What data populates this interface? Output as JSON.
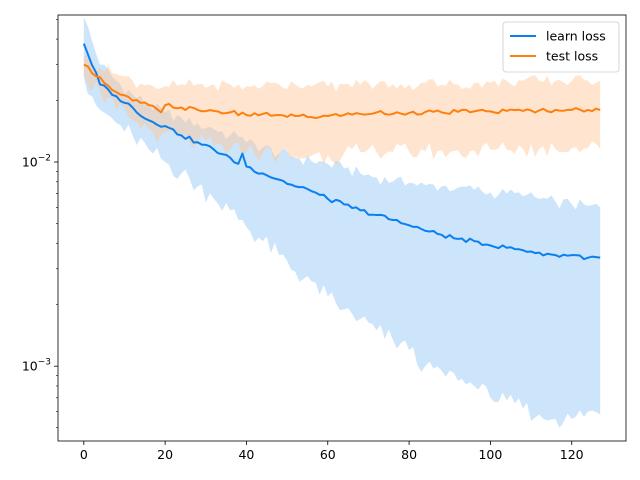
{
  "chart_data": {
    "type": "line",
    "title": "",
    "xlabel": "",
    "ylabel": "",
    "xlim": [
      -6.35,
      133.35
    ],
    "ylim": [
      0.00043,
      0.0525
    ],
    "yscale": "log",
    "grid": false,
    "legend_position": "top-right",
    "x_ticks": [
      0,
      20,
      40,
      60,
      80,
      100,
      120
    ],
    "x_tick_labels": [
      "0",
      "20",
      "40",
      "60",
      "80",
      "100",
      "120"
    ],
    "y_major_ticks": [
      0.001,
      0.01
    ],
    "y_tick_labels": [
      "10",
      "10"
    ],
    "y_tick_exponents": [
      "−3",
      "−2"
    ],
    "series": [
      {
        "name": "learn loss",
        "color": "#1f77b4",
        "line_color": "#0a7ff0",
        "band_color": "#8fc6f7",
        "band_opacity": 0.45,
        "x": [
          0,
          4,
          8,
          12,
          16,
          20,
          24,
          28,
          32,
          36,
          38,
          39,
          40,
          44,
          48,
          52,
          56,
          60,
          64,
          68,
          72,
          76,
          80,
          84,
          88,
          92,
          96,
          100,
          104,
          108,
          112,
          116,
          120,
          124,
          127
        ],
        "mean": [
          0.038,
          0.024,
          0.021,
          0.0185,
          0.016,
          0.015,
          0.0135,
          0.0125,
          0.0115,
          0.0105,
          0.0098,
          0.011,
          0.0095,
          0.0088,
          0.0082,
          0.0076,
          0.0072,
          0.0066,
          0.0062,
          0.0058,
          0.0055,
          0.0052,
          0.0049,
          0.0046,
          0.0044,
          0.0042,
          0.0041,
          0.0039,
          0.0038,
          0.0037,
          0.0036,
          0.0035,
          0.0035,
          0.0034,
          0.0034
        ],
        "upper": [
          0.051,
          0.03,
          0.025,
          0.0215,
          0.019,
          0.0175,
          0.0165,
          0.0155,
          0.0145,
          0.0135,
          0.0133,
          0.0133,
          0.0125,
          0.0118,
          0.011,
          0.0105,
          0.0101,
          0.0098,
          0.0093,
          0.0088,
          0.0084,
          0.008,
          0.0079,
          0.0077,
          0.0076,
          0.0075,
          0.0073,
          0.0071,
          0.007,
          0.0068,
          0.0066,
          0.0064,
          0.0062,
          0.0061,
          0.006
        ],
        "lower": [
          0.026,
          0.018,
          0.0155,
          0.0135,
          0.0115,
          0.01,
          0.0088,
          0.0076,
          0.0066,
          0.0058,
          0.0052,
          0.0052,
          0.0048,
          0.0041,
          0.0035,
          0.0029,
          0.0026,
          0.0022,
          0.0019,
          0.0017,
          0.0015,
          0.00135,
          0.0012,
          0.001,
          0.00095,
          0.00085,
          0.0008,
          0.0007,
          0.00068,
          0.00062,
          0.00058,
          0.00055,
          0.00055,
          0.0006,
          0.00058
        ]
      },
      {
        "name": "test loss",
        "color": "#ff7f0e",
        "line_color": "#ff7f0e",
        "band_color": "#ffc594",
        "band_opacity": 0.45,
        "x": [
          0,
          4,
          8,
          12,
          16,
          19,
          20,
          24,
          28,
          32,
          36,
          40,
          44,
          48,
          52,
          56,
          60,
          64,
          68,
          72,
          76,
          80,
          84,
          88,
          92,
          96,
          100,
          104,
          108,
          112,
          116,
          120,
          124,
          127
        ],
        "mean": [
          0.03,
          0.026,
          0.022,
          0.02,
          0.019,
          0.0175,
          0.019,
          0.0185,
          0.018,
          0.0178,
          0.0175,
          0.017,
          0.0172,
          0.017,
          0.0168,
          0.0166,
          0.0168,
          0.017,
          0.0172,
          0.0175,
          0.0172,
          0.0174,
          0.0176,
          0.0175,
          0.0176,
          0.0177,
          0.0177,
          0.0178,
          0.0178,
          0.0179,
          0.018,
          0.018,
          0.018,
          0.018
        ],
        "upper": [
          0.033,
          0.029,
          0.027,
          0.025,
          0.024,
          0.023,
          0.0235,
          0.024,
          0.024,
          0.024,
          0.024,
          0.0235,
          0.0235,
          0.024,
          0.024,
          0.0235,
          0.0235,
          0.024,
          0.024,
          0.024,
          0.024,
          0.024,
          0.0245,
          0.024,
          0.024,
          0.0245,
          0.0245,
          0.025,
          0.025,
          0.025,
          0.025,
          0.025,
          0.025,
          0.025
        ],
        "lower": [
          0.027,
          0.022,
          0.018,
          0.016,
          0.0145,
          0.0135,
          0.014,
          0.013,
          0.0125,
          0.012,
          0.0115,
          0.0112,
          0.011,
          0.0108,
          0.0106,
          0.0107,
          0.0108,
          0.011,
          0.0112,
          0.0112,
          0.0112,
          0.0112,
          0.0113,
          0.0114,
          0.0114,
          0.0114,
          0.0115,
          0.0115,
          0.0116,
          0.0116,
          0.0116,
          0.0117,
          0.0117,
          0.0116
        ]
      }
    ]
  }
}
